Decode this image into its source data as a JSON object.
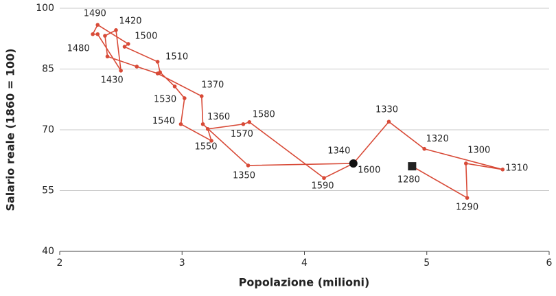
{
  "chart_data": {
    "type": "scatter",
    "connected": true,
    "x_label": "Popolazione (milioni)",
    "y_label": "Salario reale (1860 = 100)",
    "xlim": [
      2,
      6
    ],
    "xticks": [
      2,
      3,
      4,
      5,
      6
    ],
    "ylim": [
      40,
      100
    ],
    "yticks": [
      40,
      55,
      70,
      85,
      100
    ],
    "grid": true,
    "series": [
      {
        "color": "#d84a37",
        "x": [
          4.88,
          5.33,
          5.32,
          5.62,
          4.98,
          4.69,
          4.4,
          3.54,
          3.17,
          3.16,
          2.8,
          2.63,
          2.39,
          2.37,
          2.46,
          2.5,
          2.31,
          2.27,
          2.31,
          2.56,
          2.53,
          2.8,
          2.82,
          2.94,
          3.02,
          2.99,
          3.24,
          3.21,
          3.5,
          3.55,
          4.16,
          4.4
        ],
        "values": [
          61.0,
          53.2,
          61.7,
          60.2,
          65.3,
          72.0,
          61.7,
          61.2,
          71.4,
          78.3,
          83.9,
          85.6,
          88.1,
          93.2,
          94.6,
          84.6,
          93.6,
          93.6,
          95.9,
          91.2,
          90.5,
          86.8,
          84.2,
          80.7,
          77.8,
          71.4,
          67.3,
          70.2,
          71.4,
          71.9,
          58.1,
          61.7
        ],
        "labels": [
          "1280",
          "1290",
          "1300",
          "1310",
          "1320",
          "1330",
          "1340",
          "1350",
          "1360",
          "1370",
          null,
          null,
          null,
          null,
          "1420",
          "1430",
          null,
          "1480",
          "1490",
          "1500",
          null,
          "1510",
          null,
          "1530",
          null,
          "1540",
          "1550",
          null,
          "1570",
          "1580",
          "1590",
          "1600"
        ]
      }
    ]
  }
}
